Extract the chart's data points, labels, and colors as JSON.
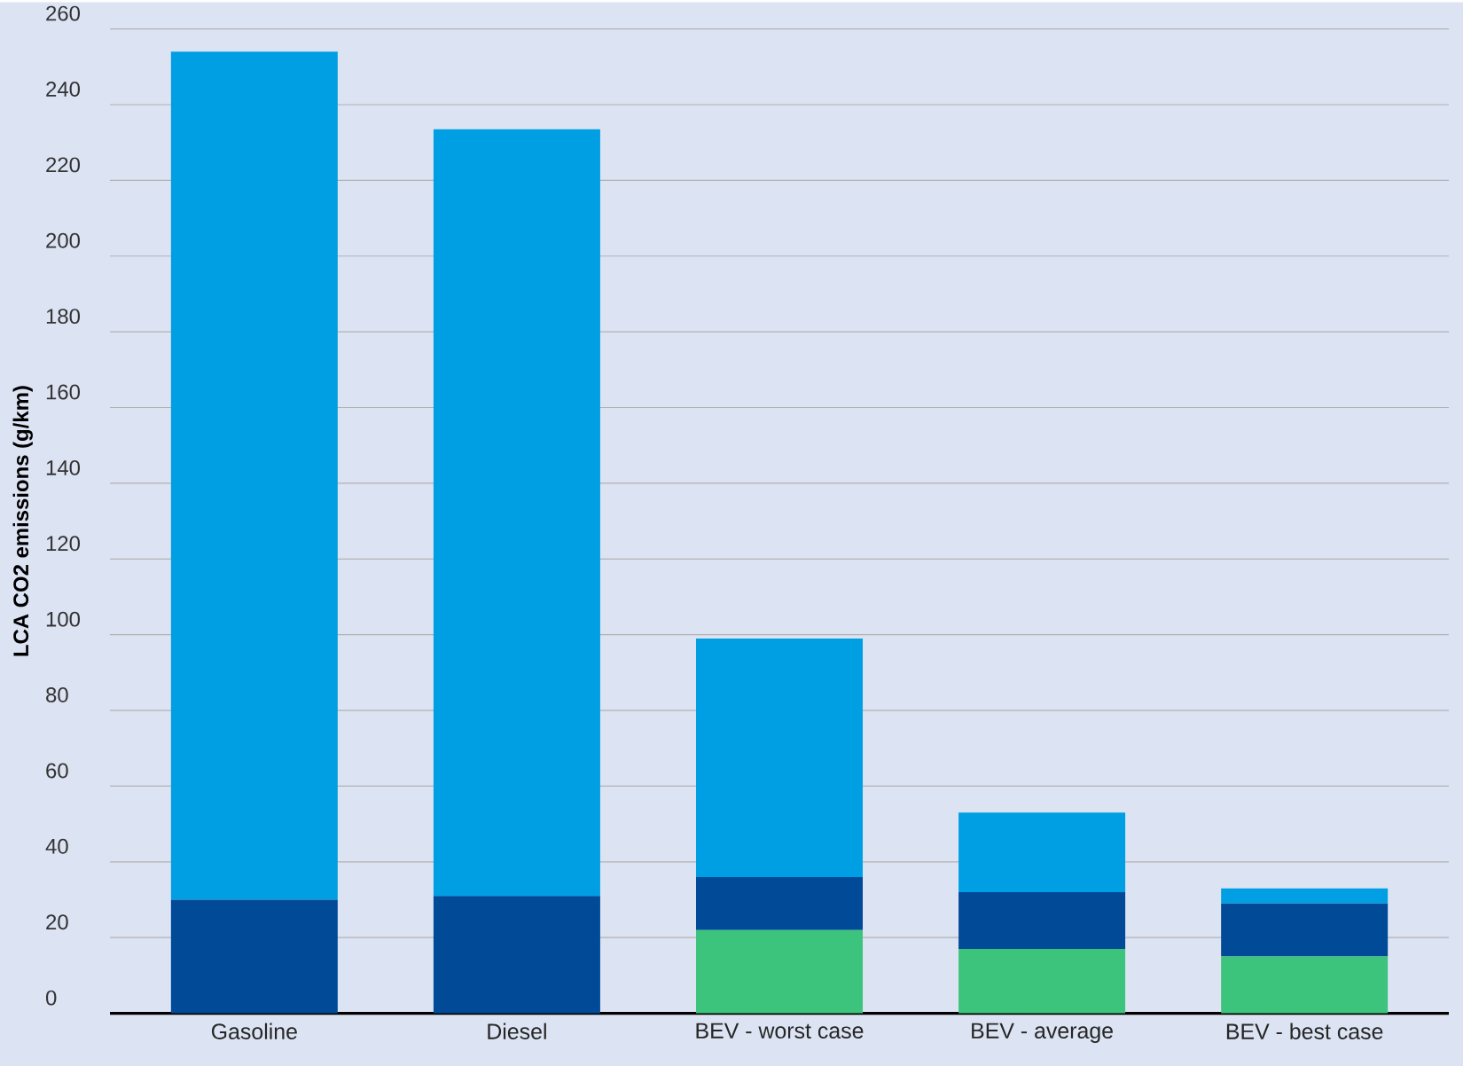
{
  "chart_data": {
    "type": "bar",
    "stacked": true,
    "ylabel": "LCA CO2 emissions (g/km)",
    "categories": [
      "Gasoline",
      "Diesel",
      "BEV - worst case",
      "BEV - average",
      "BEV - best case"
    ],
    "series": [
      {
        "color": "#3cc47c",
        "values": [
          null,
          null,
          22,
          17,
          15
        ]
      },
      {
        "color": "#004a98",
        "values": [
          30,
          31,
          14,
          15,
          14
        ]
      },
      {
        "color": "#009fe3",
        "values": [
          224,
          202.5,
          63,
          21,
          4
        ]
      }
    ],
    "ylim": [
      0,
      260
    ],
    "yticks": [
      0,
      20,
      40,
      60,
      80,
      100,
      120,
      140,
      160,
      180,
      200,
      220,
      240,
      260
    ],
    "grid": "y"
  }
}
